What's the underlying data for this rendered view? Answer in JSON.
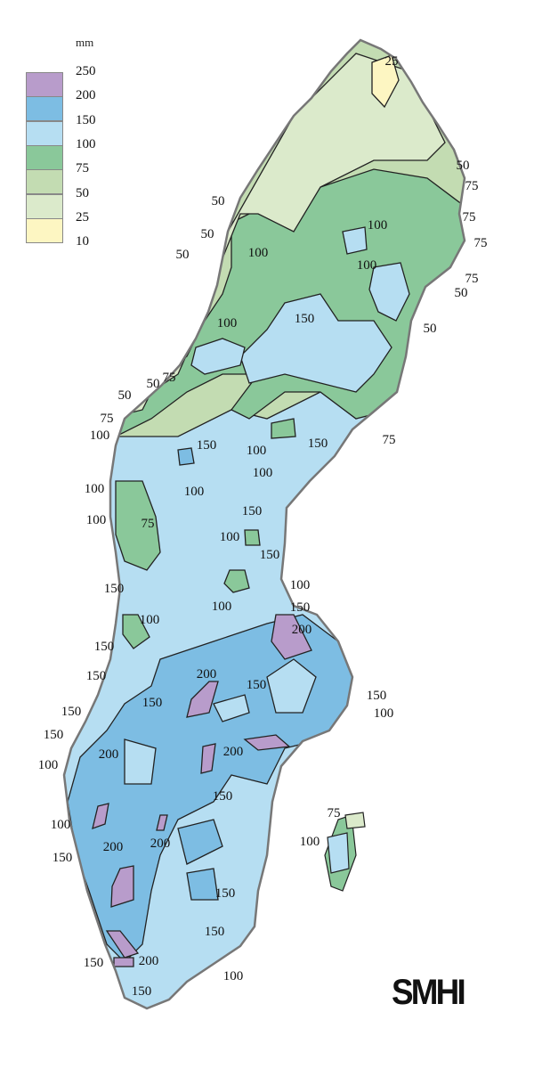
{
  "legend": {
    "unit": "mm",
    "labels": [
      "250",
      "200",
      "150",
      "100",
      "75",
      "50",
      "25",
      "10"
    ],
    "colors": [
      "#b89ccb",
      "#7dbde3",
      "#b6def2",
      "#8ac89a",
      "#c3dcb2",
      "#dbeacb",
      "#fdf6c2"
    ]
  },
  "map": {
    "outline_color": "#777777",
    "contour_labels": [
      "25",
      "50",
      "75",
      "75",
      "75",
      "75",
      "50",
      "50",
      "50",
      "50",
      "50",
      "100",
      "100",
      "100",
      "150",
      "100",
      "75",
      "50",
      "50",
      "75",
      "100",
      "75",
      "150",
      "100",
      "150",
      "100",
      "100",
      "100",
      "100",
      "75",
      "150",
      "100",
      "150",
      "100",
      "150",
      "150",
      "100",
      "100",
      "200",
      "150",
      "150",
      "200",
      "150",
      "150",
      "150",
      "100",
      "150",
      "150",
      "200",
      "200",
      "100",
      "150",
      "75",
      "100",
      "100",
      "200",
      "200",
      "150",
      "150",
      "150",
      "200",
      "150",
      "150",
      "100"
    ]
  },
  "logo": "SMHI"
}
